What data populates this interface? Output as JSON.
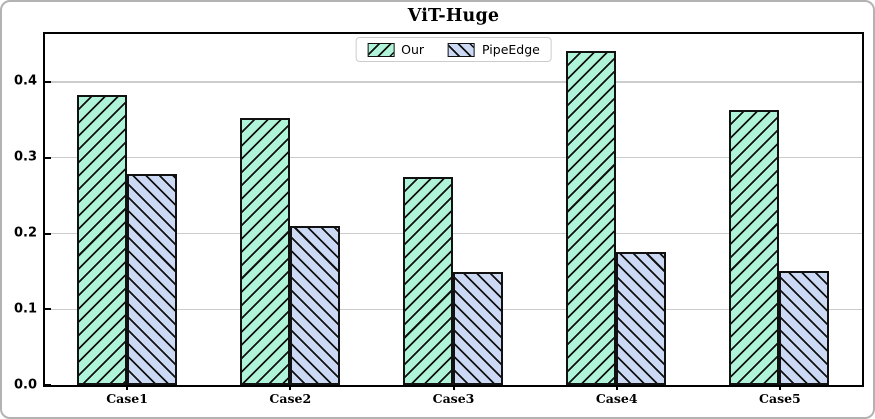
{
  "chart_data": {
    "type": "bar",
    "title": "ViT-Huge",
    "categories": [
      "Case1",
      "Case2",
      "Case3",
      "Case4",
      "Case5"
    ],
    "series": [
      {
        "name": "Our",
        "values": [
          0.383,
          0.352,
          0.274,
          0.441,
          0.363
        ],
        "fill": "#aff3d8",
        "hatch": "/"
      },
      {
        "name": "PipeEdge",
        "values": [
          0.278,
          0.21,
          0.149,
          0.176,
          0.151
        ],
        "fill": "#ccd9f5",
        "hatch": "\\"
      }
    ],
    "xlabel": "",
    "ylabel": "",
    "ylim": [
      0,
      0.462
    ],
    "yticks": [
      0.0,
      0.1,
      0.2,
      0.3,
      0.4
    ],
    "ytick_labels": [
      "0.0",
      "0.1",
      "0.2",
      "0.3",
      "0.4"
    ],
    "grid": true,
    "gridline_color": "#cccccc",
    "edge_color": "#111111",
    "legend": {
      "position": "top-center",
      "labels": [
        "Our",
        "PipeEdge"
      ]
    }
  }
}
